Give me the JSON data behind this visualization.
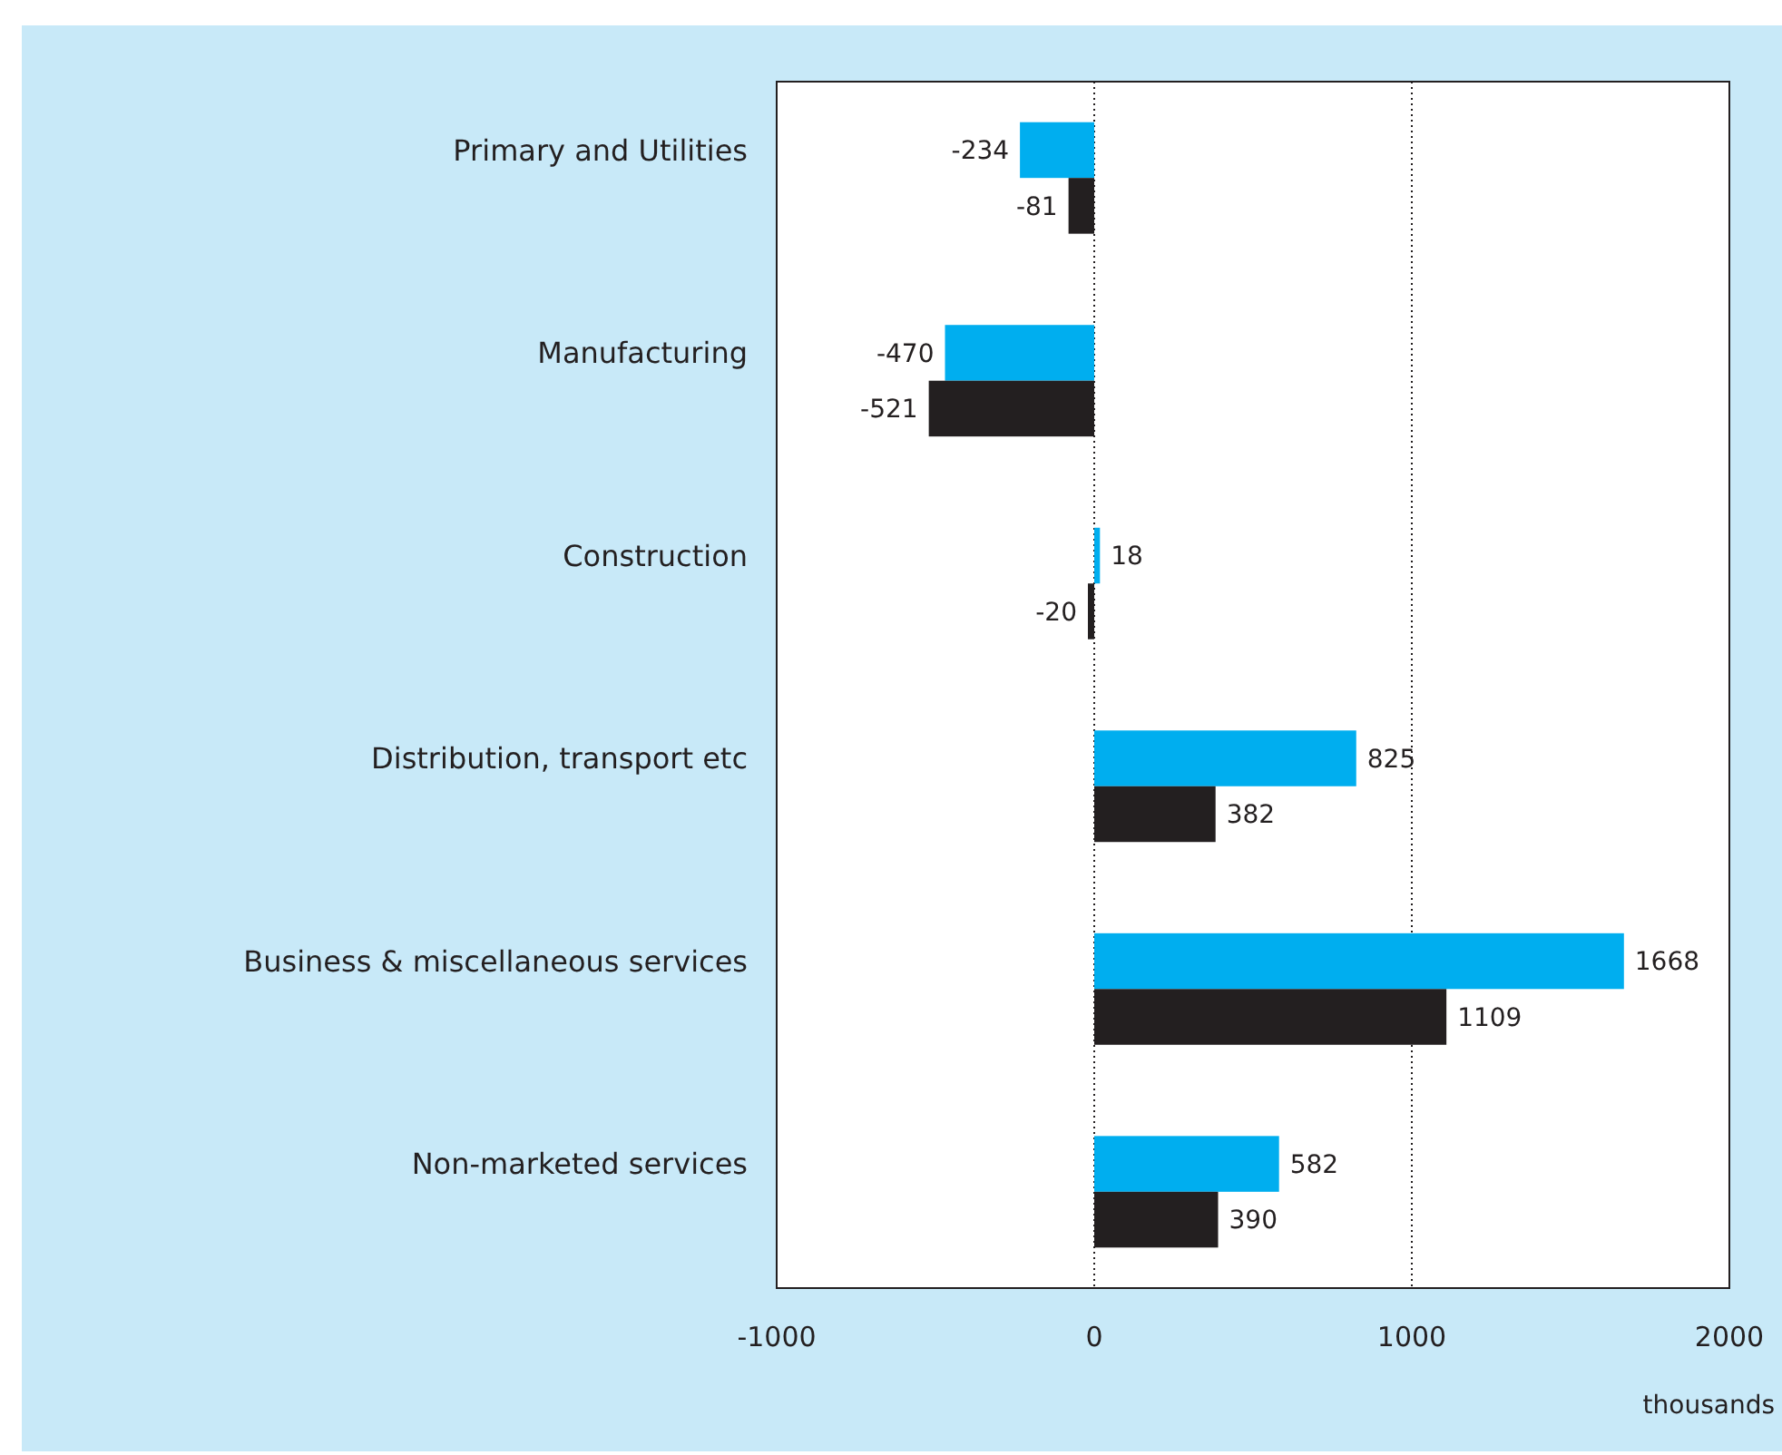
{
  "chart_data": {
    "type": "bar",
    "orientation": "horizontal",
    "xlabel": "thousands",
    "categories": [
      "Primary and Utilities",
      "Manufacturing",
      "Construction",
      "Distribution, transport etc",
      "Business & miscellaneous services",
      "Non-marketed services"
    ],
    "series": [
      {
        "color": "#00aeef",
        "values": [
          -234,
          -470,
          18,
          825,
          1668,
          582
        ]
      },
      {
        "color": "#231f20",
        "values": [
          -81,
          -521,
          -20,
          382,
          1109,
          390
        ]
      }
    ],
    "xlim": [
      -1000,
      2000
    ],
    "xticks": [
      -1000,
      0,
      1000,
      2000
    ],
    "grid": "x",
    "data_labels": true
  }
}
